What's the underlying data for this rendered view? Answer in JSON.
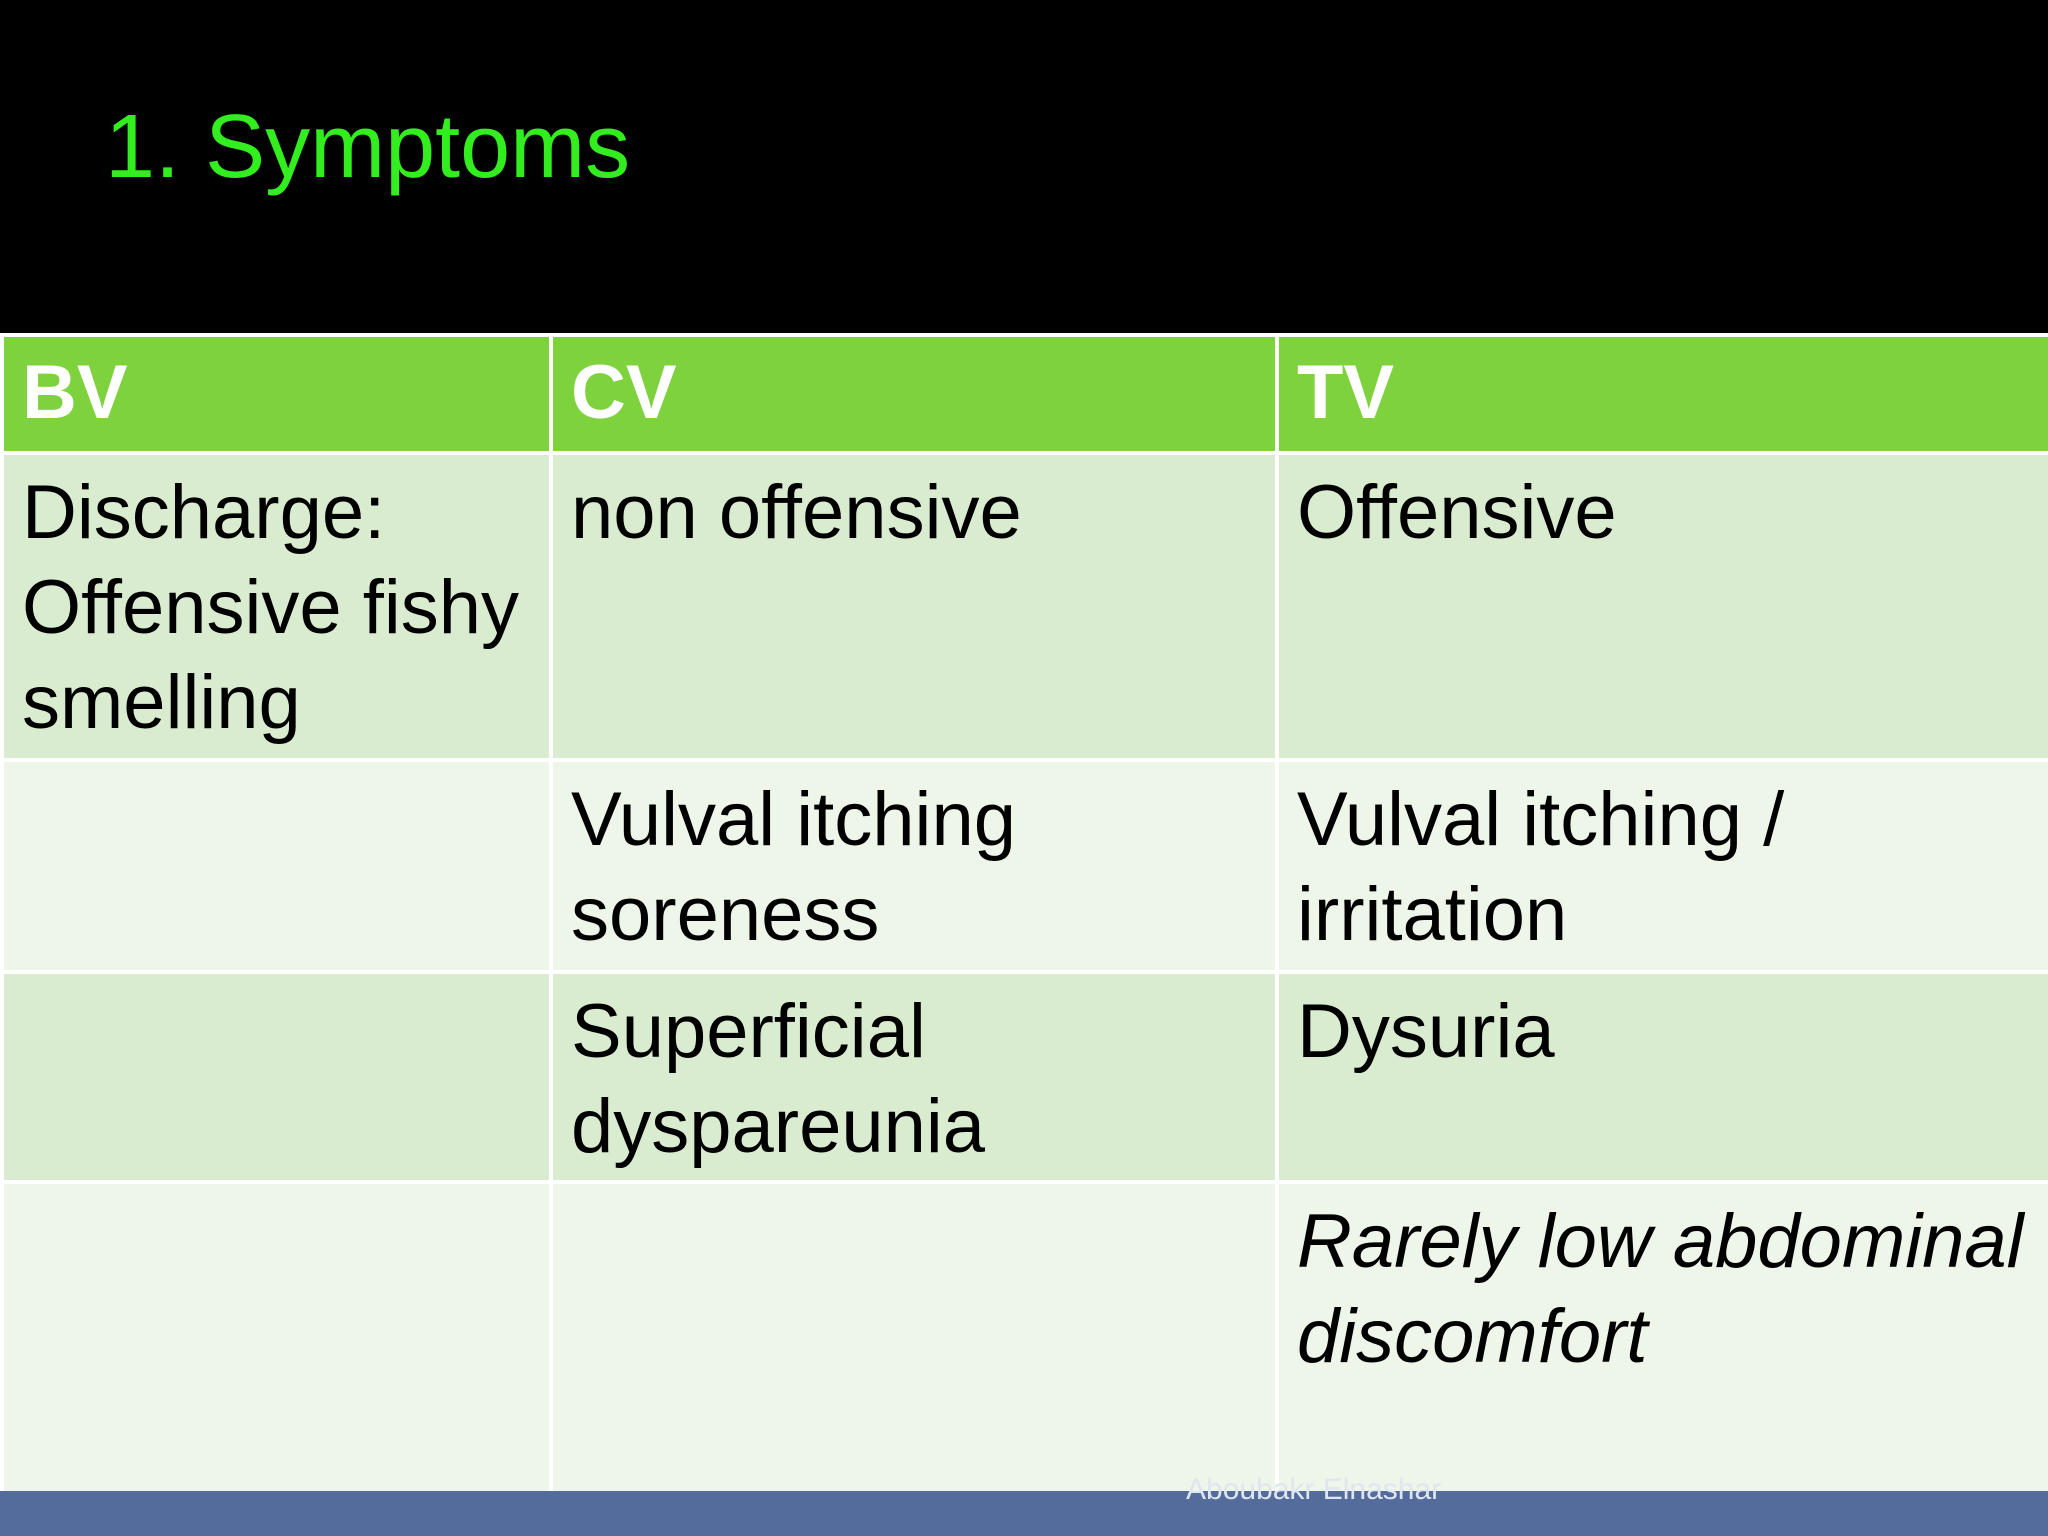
{
  "slide": {
    "title": "1. Symptoms",
    "footer": "Aboubakr Elnashar",
    "colors": {
      "background": "#000000",
      "title": "#33ee1f",
      "header_fill": "#7ed23e",
      "row_fill_dark": "#d9ecd0",
      "row_fill_light": "#edf6e8",
      "footer_bar": "#546c9b"
    }
  },
  "table": {
    "headers": [
      "BV",
      "CV",
      "TV"
    ],
    "rows": [
      [
        "Discharge: Offensive fishy smelling",
        "non offensive",
        "Offensive"
      ],
      [
        "",
        "Vulval itching soreness",
        "Vulval itching / irritation"
      ],
      [
        "",
        "Superficial dyspareunia",
        "Dysuria"
      ],
      [
        "",
        "",
        "Rarely low abdominal discomfort"
      ]
    ]
  }
}
